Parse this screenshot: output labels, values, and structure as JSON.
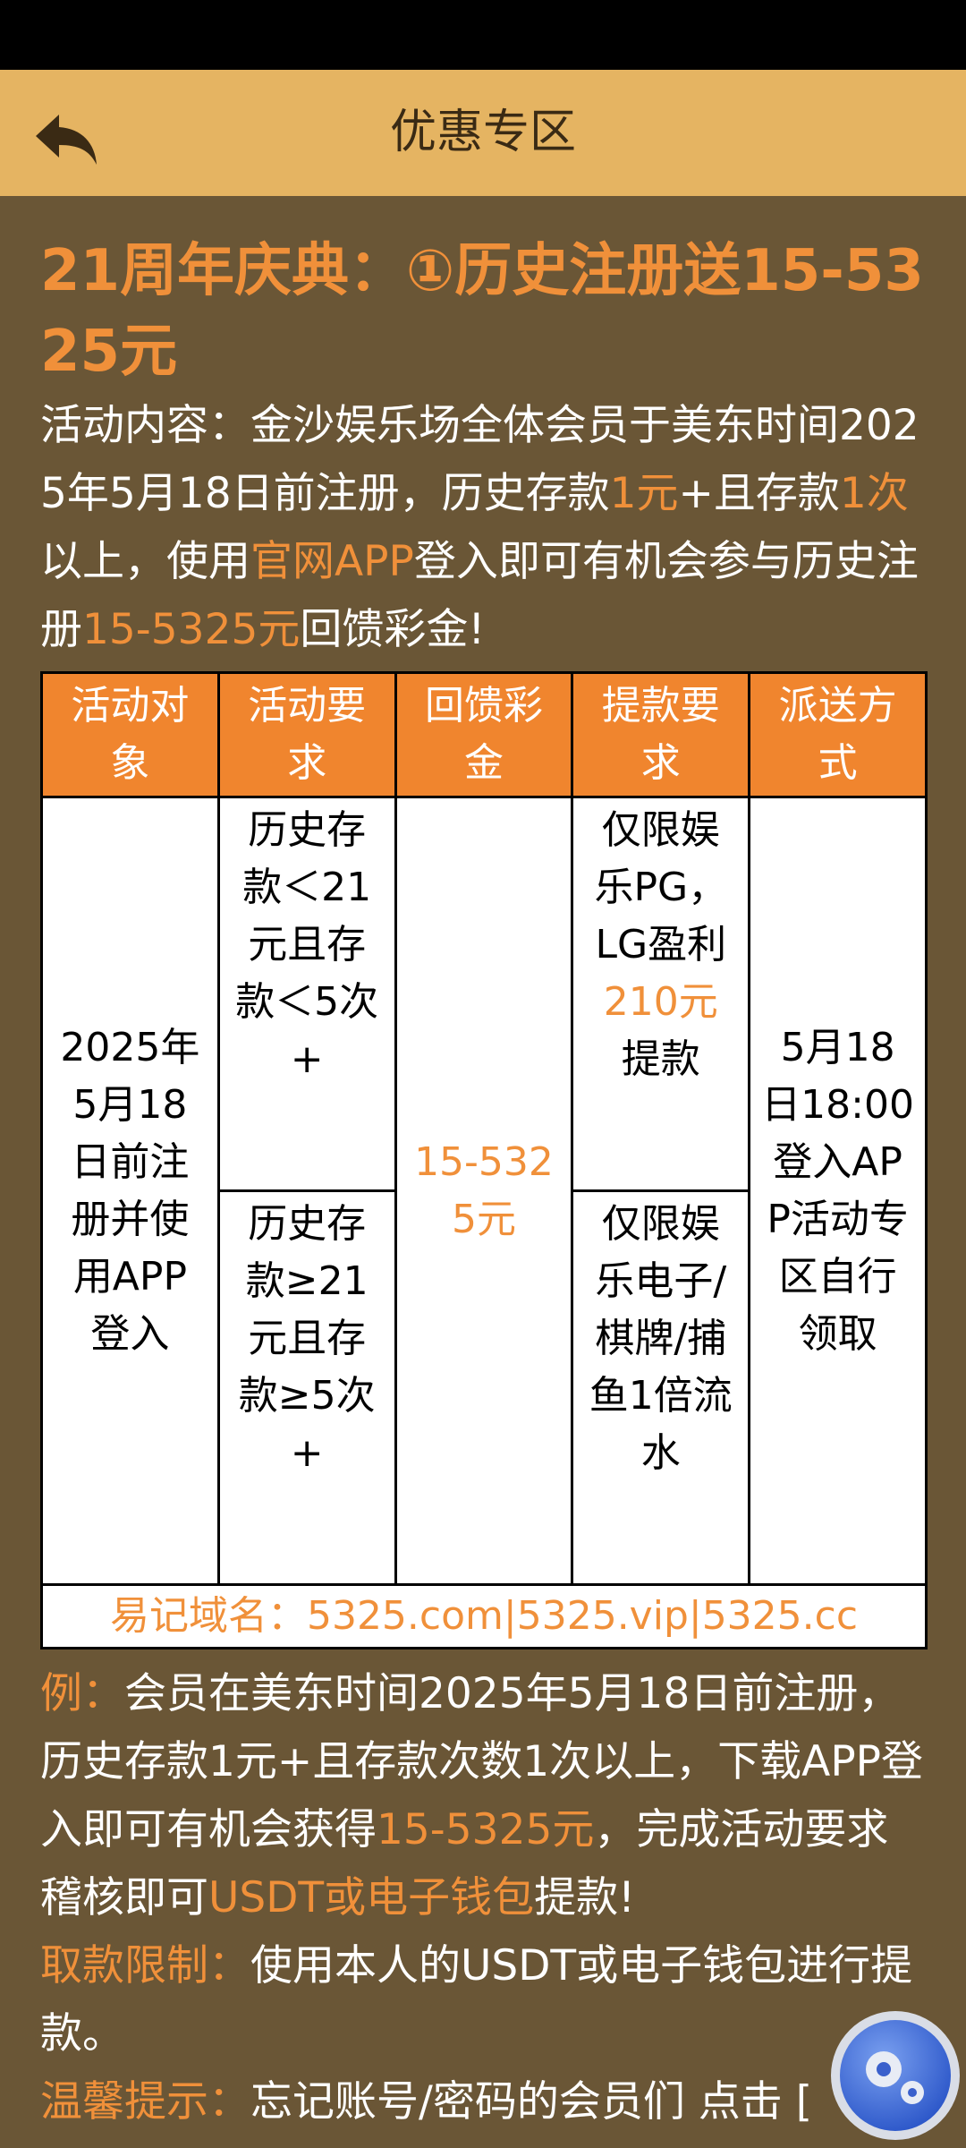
{
  "header": {
    "title": "优惠专区"
  },
  "promo": {
    "title": "21周年庆典：①历史注册送15-5325元",
    "content": [
      {
        "text": "活动内容：金沙娱乐场全体会员于美东时间2025年5月18日前注册，历史存款"
      },
      {
        "text": "1元",
        "color": "#f0903a"
      },
      {
        "text": "+且存款"
      },
      {
        "text": "1次",
        "color": "#f0903a"
      },
      {
        "text": "以上，使用"
      },
      {
        "text": "官网APP",
        "color": "#f0903a"
      },
      {
        "text": "登入即可有机会参与历史注册"
      },
      {
        "text": "15-5325元",
        "color": "#f0903a"
      },
      {
        "text": "回馈彩金!"
      }
    ]
  },
  "table": {
    "headers": [
      "活动对象",
      "活动要求",
      "回馈彩金",
      "提款要求",
      "派送方式"
    ],
    "target": "2025年5月18日前注册并使用APP登入",
    "requirements": [
      "历史存款＜21元且存款＜5次+",
      "历史存款≥21元且存款≥5次+"
    ],
    "bonus": "15-5325元",
    "withdrawal": [
      [
        {
          "text": "仅限娱乐PG，LG盈利"
        },
        {
          "text": "210元",
          "color": "#f0903a"
        },
        {
          "text": "提款"
        }
      ],
      [
        {
          "text": "仅限娱乐电子/棋牌/捕鱼1倍流水"
        }
      ]
    ],
    "delivery": "5月18日18:00登入APP活动专区自行领取",
    "footer": "易记域名：5325.com|5325.vip|5325.cc"
  },
  "notes": {
    "example": [
      {
        "text": "例：",
        "color": "#f0903a"
      },
      {
        "text": "会员在美东时间2025年5月18日前注册，历史存款1元+且存款次数1次以上，下载APP登入即可有机会获得"
      },
      {
        "text": "15-5325元",
        "color": "#f0903a"
      },
      {
        "text": "，完成活动要求稽核即可"
      },
      {
        "text": "USDT或电子钱包",
        "color": "#f0903a"
      },
      {
        "text": "提款!"
      }
    ],
    "limit": [
      {
        "text": "取款限制：",
        "color": "#f0903a"
      },
      {
        "text": "使用本人的USDT或电子钱包进行提款。"
      }
    ],
    "tip": [
      {
        "text": "温馨提示：",
        "color": "#f0903a"
      },
      {
        "text": "忘记账号/密码的会员们 点击 ["
      }
    ]
  }
}
